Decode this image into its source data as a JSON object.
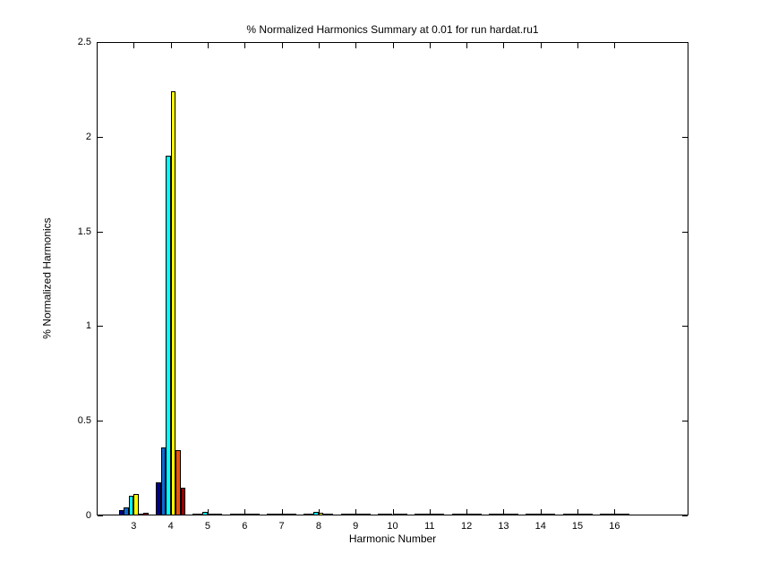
{
  "figure": {
    "background": "#ffffff"
  },
  "chart_data": {
    "type": "bar",
    "title": "% Normalized Harmonics Summary at 0.01 for run hardat.ru1",
    "xlabel": "Harmonic Number",
    "ylabel": "% Normalized Harmonics",
    "xlim": [
      2,
      18
    ],
    "ylim": [
      0,
      2.5
    ],
    "xticks": [
      3,
      4,
      5,
      6,
      7,
      8,
      9,
      10,
      11,
      12,
      13,
      14,
      15,
      16
    ],
    "yticks": [
      0,
      0.5,
      1,
      1.5,
      2,
      2.5
    ],
    "ytick_labels": [
      "0",
      "0.5",
      "1",
      "1.5",
      "2",
      "2.5"
    ],
    "grid": false,
    "legend": "none",
    "box": true,
    "tick_direction": "in",
    "bar_edge_color": "#000000",
    "group_width_fraction": 0.8,
    "categories": [
      3,
      4,
      5,
      6,
      7,
      8,
      9,
      10,
      11,
      12,
      13,
      14,
      15,
      16
    ],
    "series": [
      {
        "name": "dark-blue",
        "color": "#000090",
        "values": [
          0.03,
          0.175,
          0,
          0,
          0,
          0,
          0,
          0,
          0,
          0,
          0,
          0,
          0,
          0
        ]
      },
      {
        "name": "blue",
        "color": "#0B6AD4",
        "values": [
          0.042,
          0.36,
          0,
          0,
          0,
          0,
          0,
          0,
          0,
          0,
          0,
          0,
          0,
          0
        ]
      },
      {
        "name": "cyan",
        "color": "#00FFFF",
        "values": [
          0.105,
          1.9,
          0.017,
          0.011,
          0,
          0.019,
          0,
          0,
          0,
          0,
          0,
          0,
          0,
          0
        ]
      },
      {
        "name": "yellow",
        "color": "#FFFF00",
        "values": [
          0.112,
          2.24,
          0,
          0,
          0,
          0.013,
          0,
          0,
          0,
          0,
          0,
          0,
          0,
          0
        ]
      },
      {
        "name": "orange-red",
        "color": "#EE500D",
        "values": [
          0.004,
          0.345,
          0,
          0,
          0,
          0,
          0,
          0,
          0,
          0,
          0,
          0,
          0,
          0
        ]
      },
      {
        "name": "dark-red",
        "color": "#980000",
        "values": [
          0.015,
          0.148,
          0,
          0,
          0,
          0,
          0,
          0,
          0,
          0,
          0,
          0,
          0,
          0
        ]
      }
    ]
  }
}
